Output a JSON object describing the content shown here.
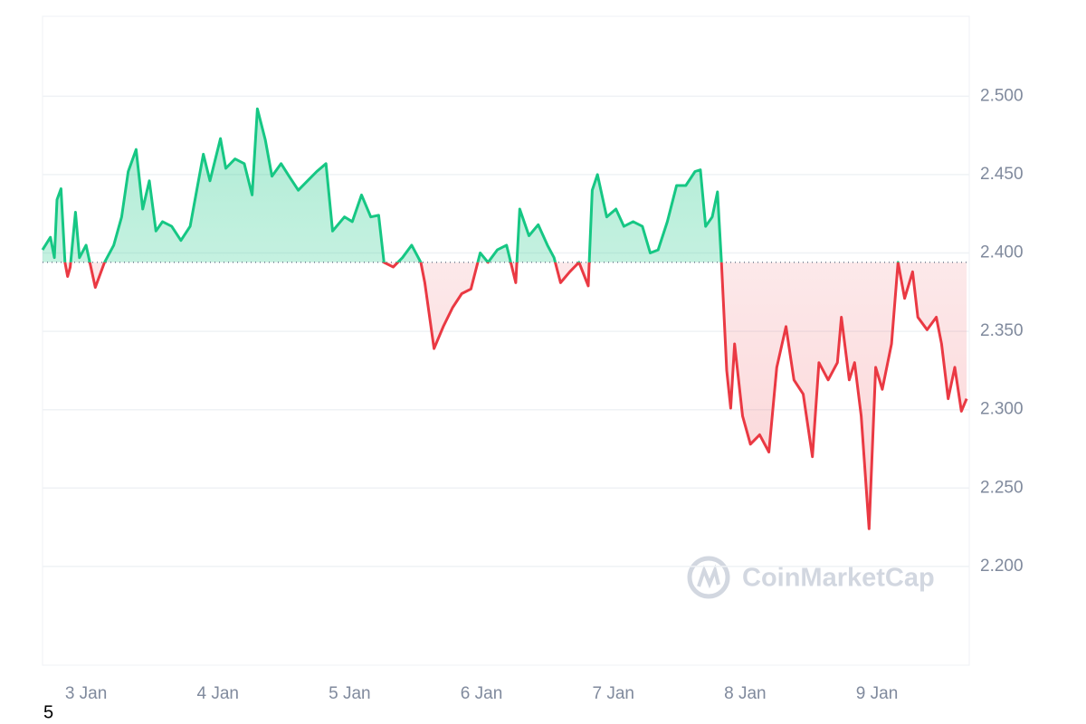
{
  "chart_data": {
    "type": "line",
    "x": [
      2.67,
      2.73,
      2.76,
      2.78,
      2.81,
      2.84,
      2.86,
      2.88,
      2.92,
      2.95,
      3.0,
      3.07,
      3.14,
      3.21,
      3.27,
      3.32,
      3.38,
      3.43,
      3.48,
      3.53,
      3.58,
      3.65,
      3.72,
      3.79,
      3.84,
      3.89,
      3.94,
      4.02,
      4.06,
      4.13,
      4.2,
      4.26,
      4.3,
      4.36,
      4.41,
      4.48,
      4.54,
      4.61,
      4.68,
      4.75,
      4.82,
      4.87,
      4.96,
      5.02,
      5.09,
      5.16,
      5.22,
      5.26,
      5.33,
      5.4,
      5.47,
      5.54,
      5.57,
      5.64,
      5.71,
      5.78,
      5.85,
      5.92,
      5.99,
      6.05,
      6.12,
      6.19,
      6.26,
      6.29,
      6.36,
      6.43,
      6.5,
      6.55,
      6.6,
      6.67,
      6.74,
      6.81,
      6.84,
      6.88,
      6.95,
      7.02,
      7.08,
      7.15,
      7.22,
      7.28,
      7.34,
      7.41,
      7.48,
      7.55,
      7.62,
      7.66,
      7.7,
      7.75,
      7.79,
      7.82,
      7.86,
      7.89,
      7.92,
      7.98,
      8.04,
      8.11,
      8.18,
      8.24,
      8.31,
      8.37,
      8.44,
      8.51,
      8.56,
      8.63,
      8.7,
      8.73,
      8.79,
      8.83,
      8.88,
      8.94,
      8.99,
      9.04,
      9.11,
      9.16,
      9.21,
      9.27,
      9.31,
      9.38,
      9.45,
      9.49,
      9.54,
      9.59,
      9.64,
      9.68
    ],
    "series": [
      {
        "values": [
          2.402,
          2.41,
          2.397,
          2.434,
          2.441,
          2.394,
          2.385,
          2.391,
          2.426,
          2.397,
          2.405,
          2.378,
          2.394,
          2.405,
          2.423,
          2.452,
          2.466,
          2.428,
          2.446,
          2.414,
          2.42,
          2.417,
          2.408,
          2.417,
          2.44,
          2.463,
          2.446,
          2.473,
          2.454,
          2.46,
          2.457,
          2.437,
          2.492,
          2.472,
          2.449,
          2.457,
          2.449,
          2.44,
          2.446,
          2.452,
          2.457,
          2.414,
          2.423,
          2.42,
          2.437,
          2.423,
          2.424,
          2.394,
          2.391,
          2.397,
          2.405,
          2.394,
          2.381,
          2.339,
          2.353,
          2.365,
          2.374,
          2.377,
          2.4,
          2.394,
          2.402,
          2.405,
          2.381,
          2.428,
          2.411,
          2.418,
          2.405,
          2.397,
          2.381,
          2.388,
          2.394,
          2.379,
          2.44,
          2.45,
          2.423,
          2.428,
          2.417,
          2.42,
          2.417,
          2.4,
          2.402,
          2.42,
          2.443,
          2.443,
          2.452,
          2.453,
          2.417,
          2.423,
          2.439,
          2.394,
          2.325,
          2.301,
          2.342,
          2.296,
          2.278,
          2.284,
          2.273,
          2.327,
          2.353,
          2.319,
          2.31,
          2.27,
          2.33,
          2.319,
          2.33,
          2.359,
          2.319,
          2.33,
          2.296,
          2.224,
          2.327,
          2.313,
          2.342,
          2.394,
          2.371,
          2.388,
          2.359,
          2.351,
          2.359,
          2.342,
          2.307,
          2.327,
          2.299,
          2.307
        ]
      }
    ],
    "baseline": 2.394,
    "up_color": "#16c784",
    "down_color": "#ea3943",
    "xlim": [
      2.67,
      9.7
    ],
    "ylim": [
      2.137,
      2.551
    ],
    "xticks": [
      {
        "value": 3,
        "label": "3 Jan"
      },
      {
        "value": 4,
        "label": "4 Jan"
      },
      {
        "value": 5,
        "label": "5 Jan"
      },
      {
        "value": 6,
        "label": "6 Jan"
      },
      {
        "value": 7,
        "label": "7 Jan"
      },
      {
        "value": 8,
        "label": "8 Jan"
      },
      {
        "value": 9,
        "label": "9 Jan"
      }
    ],
    "yticks": [
      {
        "value": 2.2,
        "label": "2.200"
      },
      {
        "value": 2.25,
        "label": "2.250"
      },
      {
        "value": 2.3,
        "label": "2.300"
      },
      {
        "value": 2.35,
        "label": "2.350"
      },
      {
        "value": 2.4,
        "label": "2.400"
      },
      {
        "value": 2.45,
        "label": "2.450"
      },
      {
        "value": 2.5,
        "label": "2.500"
      }
    ],
    "grid": true,
    "watermark": "CoinMarketCap",
    "corner_label": "5"
  }
}
